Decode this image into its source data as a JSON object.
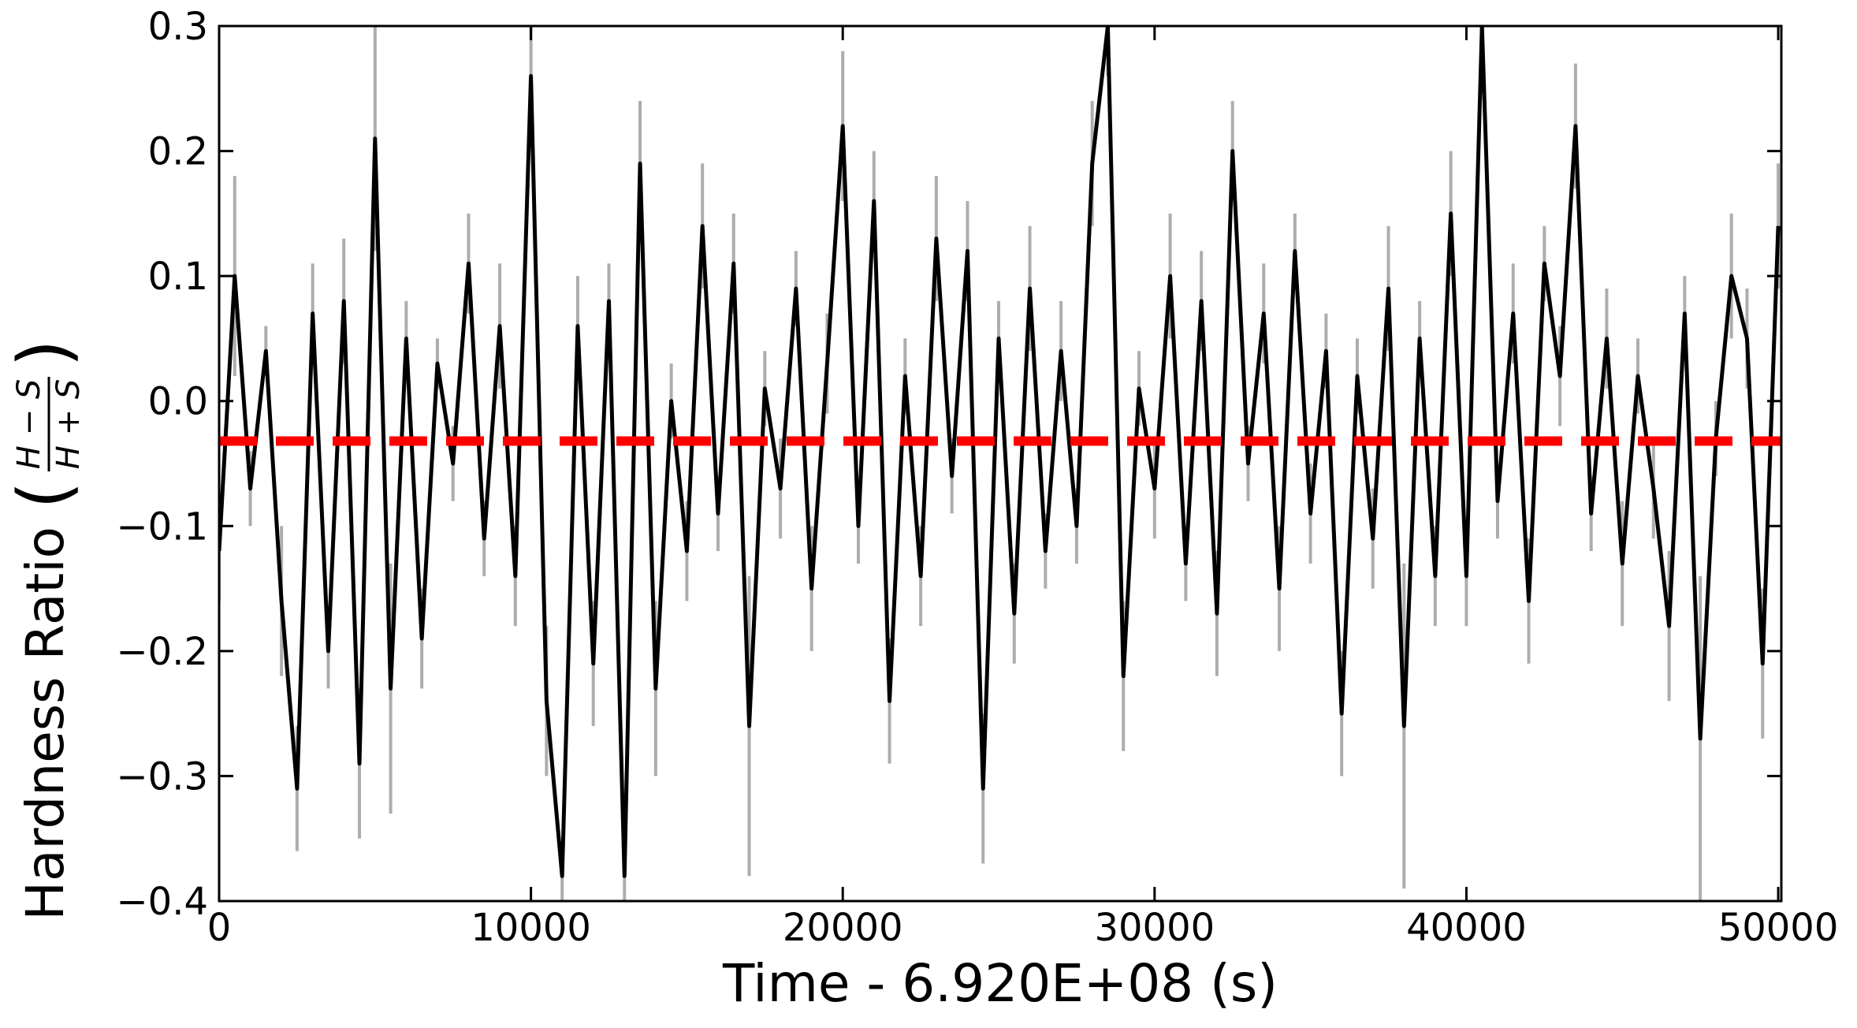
{
  "chart_data": {
    "type": "line",
    "xlabel": "Time - 6.920E+08 (s)",
    "ylabel": "Hardness Ratio",
    "ylabel_fraction": {
      "numerator": "H − S",
      "denominator": "H + S"
    },
    "x": [
      0,
      500,
      1000,
      1500,
      2000,
      2500,
      3000,
      3500,
      4000,
      4500,
      5000,
      5500,
      6000,
      6500,
      7000,
      7500,
      8000,
      8500,
      9000,
      9500,
      10000,
      10500,
      11000,
      11500,
      12000,
      12500,
      13000,
      13500,
      14000,
      14500,
      15000,
      15500,
      16000,
      16500,
      17000,
      17500,
      18000,
      18500,
      19000,
      19500,
      20000,
      20500,
      21000,
      21500,
      22000,
      22500,
      23000,
      23500,
      24000,
      24500,
      25000,
      25500,
      26000,
      26500,
      27000,
      27500,
      28000,
      28500,
      29000,
      29500,
      30000,
      30500,
      31000,
      31500,
      32000,
      32500,
      33000,
      33500,
      34000,
      34500,
      35000,
      35500,
      36000,
      36500,
      37000,
      37500,
      38000,
      38500,
      39000,
      39500,
      40000,
      40500,
      41000,
      41500,
      42000,
      42500,
      43000,
      43500,
      44000,
      44500,
      45000,
      45500,
      46000,
      46500,
      47000,
      47500,
      48000,
      48500,
      49000,
      49500,
      50000
    ],
    "series": [
      {
        "name": "hardness-ratio",
        "color": "#000000",
        "error_color": "#999999",
        "values": [
          -0.12,
          0.1,
          -0.07,
          0.04,
          -0.16,
          -0.31,
          0.07,
          -0.2,
          0.08,
          -0.29,
          0.21,
          -0.23,
          0.05,
          -0.19,
          0.03,
          -0.05,
          0.11,
          -0.11,
          0.06,
          -0.14,
          0.26,
          -0.24,
          -0.38,
          0.06,
          -0.21,
          0.08,
          -0.38,
          0.19,
          -0.23,
          0.0,
          -0.12,
          0.14,
          -0.09,
          0.11,
          -0.26,
          0.01,
          -0.07,
          0.09,
          -0.15,
          0.03,
          0.22,
          -0.1,
          0.16,
          -0.24,
          0.02,
          -0.14,
          0.13,
          -0.06,
          0.12,
          -0.31,
          0.05,
          -0.17,
          0.09,
          -0.12,
          0.04,
          -0.1,
          0.19,
          0.3,
          -0.22,
          0.01,
          -0.07,
          0.1,
          -0.13,
          0.08,
          -0.17,
          0.2,
          -0.05,
          0.07,
          -0.15,
          0.12,
          -0.09,
          0.04,
          -0.25,
          0.02,
          -0.11,
          0.09,
          -0.26,
          0.05,
          -0.14,
          0.15,
          -0.14,
          0.3,
          -0.08,
          0.07,
          -0.16,
          0.11,
          0.02,
          0.22,
          -0.09,
          0.05,
          -0.13,
          0.02,
          -0.07,
          -0.18,
          0.07,
          -0.27,
          -0.03,
          0.1,
          0.05,
          -0.21,
          0.14
        ],
        "errors": [
          0.04,
          0.08,
          0.03,
          0.02,
          0.06,
          0.05,
          0.04,
          0.03,
          0.05,
          0.06,
          0.09,
          0.1,
          0.03,
          0.04,
          0.02,
          0.03,
          0.04,
          0.03,
          0.05,
          0.04,
          0.05,
          0.06,
          0.02,
          0.04,
          0.05,
          0.03,
          0.02,
          0.05,
          0.07,
          0.03,
          0.04,
          0.05,
          0.03,
          0.04,
          0.12,
          0.03,
          0.04,
          0.03,
          0.05,
          0.04,
          0.06,
          0.03,
          0.04,
          0.05,
          0.03,
          0.04,
          0.05,
          0.03,
          0.04,
          0.06,
          0.03,
          0.04,
          0.05,
          0.03,
          0.04,
          0.03,
          0.05,
          0.04,
          0.06,
          0.03,
          0.04,
          0.05,
          0.03,
          0.04,
          0.05,
          0.04,
          0.03,
          0.04,
          0.05,
          0.03,
          0.04,
          0.03,
          0.05,
          0.03,
          0.04,
          0.05,
          0.13,
          0.03,
          0.04,
          0.05,
          0.04,
          0.04,
          0.03,
          0.04,
          0.05,
          0.03,
          0.04,
          0.05,
          0.03,
          0.04,
          0.05,
          0.03,
          0.04,
          0.06,
          0.03,
          0.13,
          0.03,
          0.05,
          0.04,
          0.06,
          0.05
        ]
      }
    ],
    "reference_line": {
      "value": -0.032,
      "color": "#ff0000",
      "style": "dashed"
    },
    "xlim": [
      0,
      50100
    ],
    "xticks": [
      0,
      10000,
      20000,
      30000,
      40000,
      50000
    ],
    "ylim": [
      -0.4,
      0.3
    ],
    "yticks": [
      {
        "value": -0.4,
        "label": "−0.4"
      },
      {
        "value": -0.3,
        "label": "−0.3"
      },
      {
        "value": -0.2,
        "label": "−0.2"
      },
      {
        "value": -0.1,
        "label": "−0.1"
      },
      {
        "value": 0,
        "label": "0.0"
      },
      0.1,
      0.2,
      0.3
    ],
    "grid": false
  }
}
